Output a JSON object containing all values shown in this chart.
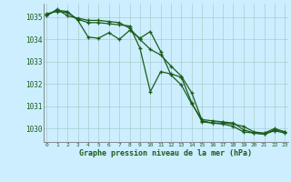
{
  "title": "Graphe pression niveau de la mer (hPa)",
  "background_color": "#cceeff",
  "plot_bg_color": "#cceeff",
  "line_color": "#1a5c1a",
  "grid_color": "#aacccc",
  "text_color": "#1a5c1a",
  "ylim": [
    1029.4,
    1035.6
  ],
  "xlim": [
    -0.3,
    23.3
  ],
  "yticks": [
    1030,
    1031,
    1032,
    1033,
    1034,
    1035
  ],
  "xticks": [
    0,
    1,
    2,
    3,
    4,
    5,
    6,
    7,
    8,
    9,
    10,
    11,
    12,
    13,
    14,
    15,
    16,
    17,
    18,
    19,
    20,
    21,
    22,
    23
  ],
  "series": [
    [
      1035.05,
      1035.35,
      1035.05,
      1034.95,
      1034.85,
      1034.85,
      1034.8,
      1034.75,
      1034.5,
      1034.0,
      1033.55,
      1033.3,
      1032.8,
      1032.35,
      1031.6,
      1030.35,
      1030.25,
      1030.25,
      1030.2,
      1030.1,
      1029.85,
      1029.8,
      1030.0,
      1029.85
    ],
    [
      1035.1,
      1035.3,
      1035.25,
      1034.85,
      1034.1,
      1034.05,
      1034.3,
      1034.0,
      1034.4,
      1034.05,
      1034.35,
      1033.45,
      1032.4,
      1031.95,
      1031.1,
      1030.4,
      1030.35,
      1030.3,
      1030.25,
      1029.95,
      1029.8,
      1029.75,
      1029.95,
      1029.85
    ],
    [
      1035.15,
      1035.25,
      1035.2,
      1034.9,
      1034.75,
      1034.75,
      1034.7,
      1034.65,
      1034.6,
      1033.6,
      1031.65,
      1032.55,
      1032.45,
      1032.3,
      1031.15,
      1030.3,
      1030.25,
      1030.2,
      1030.1,
      1029.85,
      1029.8,
      1029.75,
      1029.9,
      1029.8
    ]
  ]
}
